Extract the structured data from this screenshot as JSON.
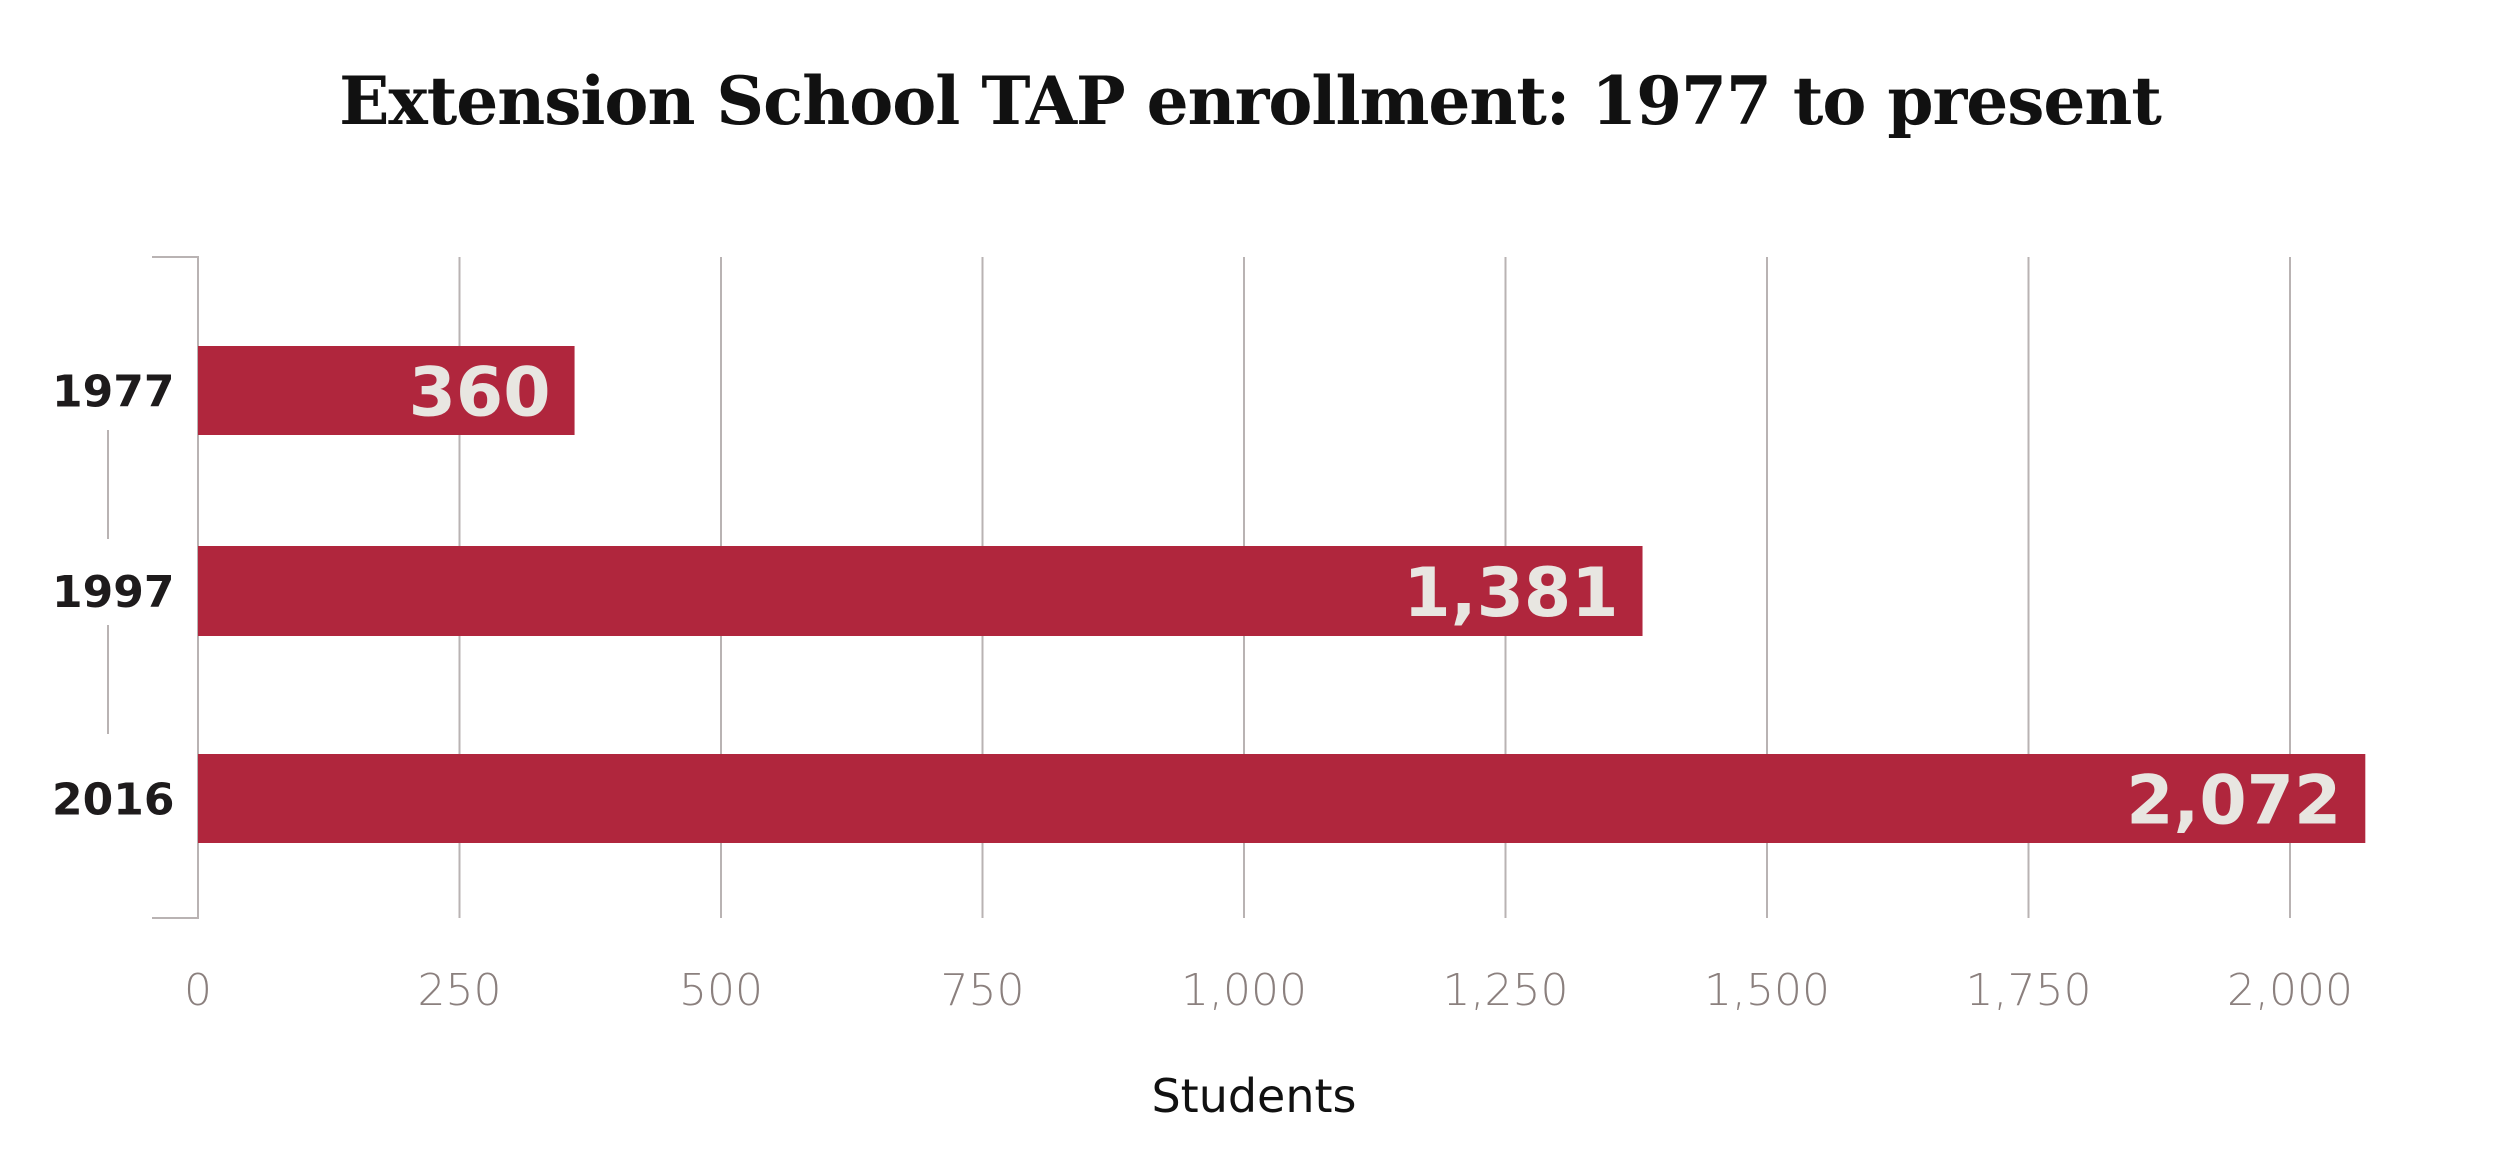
{
  "chart_data": {
    "type": "bar",
    "orientation": "horizontal",
    "title": "Extension School TAP enrollment: 1977 to present",
    "categories": [
      "1977",
      "1997",
      "2016"
    ],
    "values": [
      360,
      1381,
      2072
    ],
    "value_labels": [
      "360",
      "1,381",
      "2,072"
    ],
    "xlabel": "Students",
    "ylabel": "",
    "xlim": [
      0,
      2000
    ],
    "xticks": [
      0,
      250,
      500,
      750,
      1000,
      1250,
      1500,
      1750,
      2000
    ],
    "xtick_labels": [
      "0",
      "250",
      "500",
      "750",
      "1,000",
      "1,250",
      "1,500",
      "1,750",
      "2,000"
    ],
    "grid": "vertical",
    "colors": {
      "bar": "#b0263d",
      "value_label": "#e8e6e1",
      "grid": "#b9b3b3",
      "tick_label": "#8b807e"
    }
  }
}
